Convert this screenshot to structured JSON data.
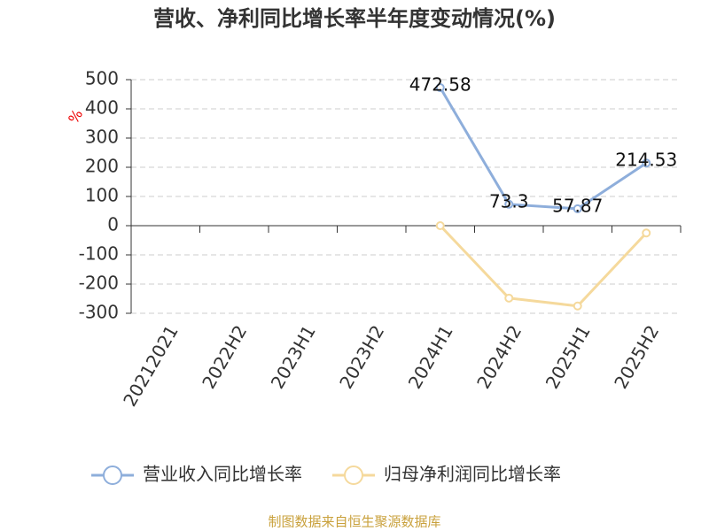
{
  "chart_data": {
    "type": "line",
    "title": "营收、净利同比增长率半年度变动情况(%)",
    "y_label": "%",
    "categories": [
      "20212021",
      "2022H2",
      "2023H1",
      "2023H2",
      "2024H1",
      "2024H2",
      "2025H1",
      "2025H2"
    ],
    "series": [
      {
        "name": "营业收入同比增长率",
        "color": "#8eaedb",
        "values": [
          null,
          null,
          null,
          null,
          472.58,
          73.3,
          57.87,
          214.53
        ],
        "show_labels": true
      },
      {
        "name": "归母净利润同比增长率",
        "color": "#f5d99c",
        "values": [
          null,
          null,
          null,
          null,
          0,
          -248,
          -275,
          -25
        ],
        "show_labels": false
      }
    ],
    "ylim": [
      -300,
      500
    ],
    "yticks": [
      -300,
      -200,
      -100,
      0,
      100,
      200,
      300,
      400,
      500
    ],
    "grid": true,
    "legend": "bottom",
    "source": "制图数据来自恒生聚源数据库"
  }
}
